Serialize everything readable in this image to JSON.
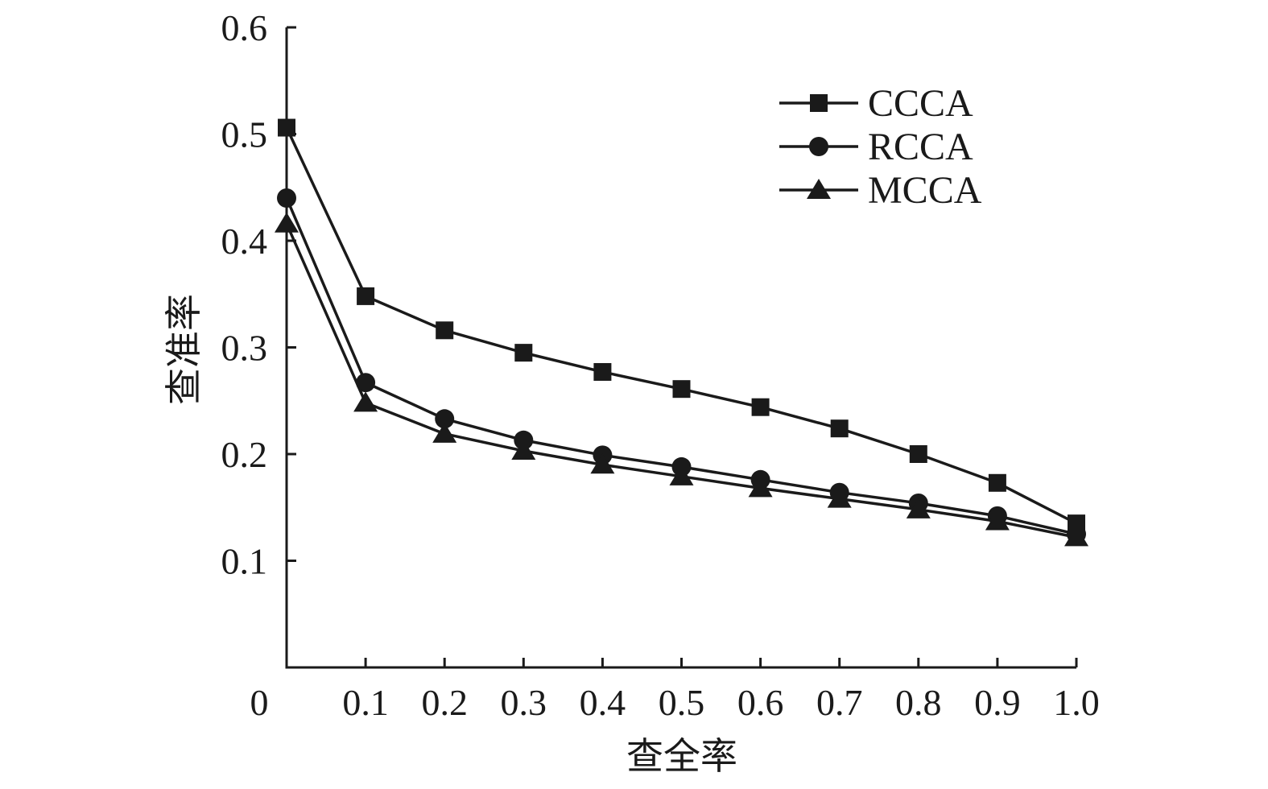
{
  "chart_data": {
    "type": "line",
    "title": "",
    "xlabel": "查全率",
    "ylabel": "查准率",
    "x": [
      0,
      0.1,
      0.2,
      0.3,
      0.4,
      0.5,
      0.6,
      0.7,
      0.8,
      0.9,
      1.0
    ],
    "x_tick_labels": [
      "0",
      "0.1",
      "0.2",
      "0.3",
      "0.4",
      "0.5",
      "0.6",
      "0.7",
      "0.8",
      "0.9",
      "1.0"
    ],
    "y_tick_values": [
      0.1,
      0.2,
      0.3,
      0.4,
      0.5,
      0.6
    ],
    "y_tick_labels": [
      "0.1",
      "0.2",
      "0.3",
      "0.4",
      "0.5",
      "0.6"
    ],
    "xlim": [
      0,
      1.0
    ],
    "ylim": [
      0,
      0.6
    ],
    "grid": false,
    "legend_position": "top-right",
    "series": [
      {
        "name": "CCCA",
        "marker": "square",
        "values": [
          0.506,
          0.348,
          0.316,
          0.295,
          0.277,
          0.261,
          0.244,
          0.224,
          0.2,
          0.173,
          0.135
        ]
      },
      {
        "name": "RCCA",
        "marker": "circle",
        "values": [
          0.44,
          0.267,
          0.233,
          0.213,
          0.199,
          0.188,
          0.176,
          0.164,
          0.154,
          0.142,
          0.125
        ]
      },
      {
        "name": "MCCA",
        "marker": "triangle",
        "values": [
          0.416,
          0.248,
          0.219,
          0.203,
          0.19,
          0.179,
          0.168,
          0.158,
          0.148,
          0.137,
          0.122
        ]
      }
    ]
  }
}
